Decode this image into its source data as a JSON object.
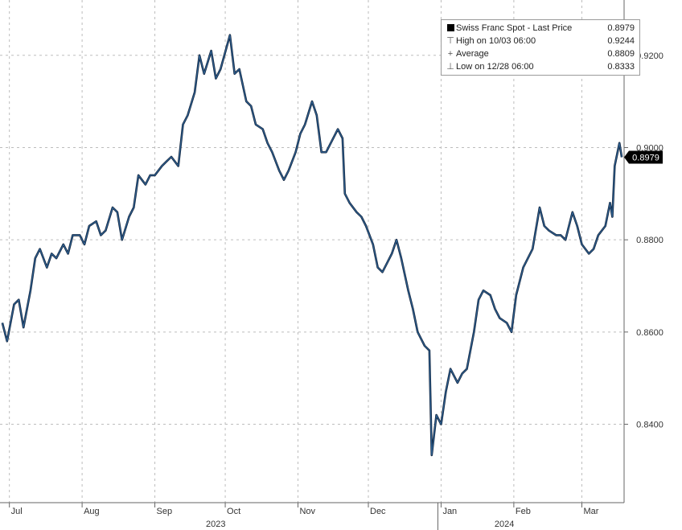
{
  "chart_data": {
    "type": "line",
    "title": "",
    "xlabel": "",
    "ylabel": "",
    "ylim": [
      0.823,
      0.932
    ],
    "y_axis_position": "right",
    "grid": true,
    "legend_position": "top-right",
    "series": [
      {
        "name": "Swiss Franc Spot - Last Price",
        "color": "#2e5f8f",
        "points": [
          [
            "2023-06-28",
            0.862
          ],
          [
            "2023-06-30",
            0.858
          ],
          [
            "2023-07-03",
            0.866
          ],
          [
            "2023-07-05",
            0.867
          ],
          [
            "2023-07-07",
            0.861
          ],
          [
            "2023-07-10",
            0.869
          ],
          [
            "2023-07-12",
            0.876
          ],
          [
            "2023-07-14",
            0.878
          ],
          [
            "2023-07-17",
            0.874
          ],
          [
            "2023-07-19",
            0.877
          ],
          [
            "2023-07-21",
            0.876
          ],
          [
            "2023-07-24",
            0.879
          ],
          [
            "2023-07-26",
            0.877
          ],
          [
            "2023-07-28",
            0.881
          ],
          [
            "2023-07-31",
            0.881
          ],
          [
            "2023-08-02",
            0.879
          ],
          [
            "2023-08-04",
            0.883
          ],
          [
            "2023-08-07",
            0.884
          ],
          [
            "2023-08-09",
            0.881
          ],
          [
            "2023-08-11",
            0.882
          ],
          [
            "2023-08-14",
            0.887
          ],
          [
            "2023-08-16",
            0.886
          ],
          [
            "2023-08-18",
            0.88
          ],
          [
            "2023-08-21",
            0.885
          ],
          [
            "2023-08-23",
            0.887
          ],
          [
            "2023-08-25",
            0.894
          ],
          [
            "2023-08-28",
            0.892
          ],
          [
            "2023-08-30",
            0.894
          ],
          [
            "2023-09-01",
            0.894
          ],
          [
            "2023-09-04",
            0.896
          ],
          [
            "2023-09-06",
            0.897
          ],
          [
            "2023-09-08",
            0.898
          ],
          [
            "2023-09-11",
            0.896
          ],
          [
            "2023-09-13",
            0.905
          ],
          [
            "2023-09-15",
            0.907
          ],
          [
            "2023-09-18",
            0.912
          ],
          [
            "2023-09-20",
            0.92
          ],
          [
            "2023-09-22",
            0.916
          ],
          [
            "2023-09-25",
            0.921
          ],
          [
            "2023-09-27",
            0.915
          ],
          [
            "2023-09-29",
            0.917
          ],
          [
            "2023-10-03",
            0.9244
          ],
          [
            "2023-10-05",
            0.916
          ],
          [
            "2023-10-07",
            0.917
          ],
          [
            "2023-10-10",
            0.91
          ],
          [
            "2023-10-12",
            0.909
          ],
          [
            "2023-10-14",
            0.905
          ],
          [
            "2023-10-17",
            0.904
          ],
          [
            "2023-10-19",
            0.901
          ],
          [
            "2023-10-21",
            0.899
          ],
          [
            "2023-10-24",
            0.895
          ],
          [
            "2023-10-26",
            0.893
          ],
          [
            "2023-10-28",
            0.895
          ],
          [
            "2023-10-31",
            0.899
          ],
          [
            "2023-11-02",
            0.903
          ],
          [
            "2023-11-04",
            0.905
          ],
          [
            "2023-11-07",
            0.91
          ],
          [
            "2023-11-09",
            0.907
          ],
          [
            "2023-11-11",
            0.899
          ],
          [
            "2023-11-13",
            0.899
          ],
          [
            "2023-11-15",
            0.901
          ],
          [
            "2023-11-18",
            0.904
          ],
          [
            "2023-11-20",
            0.902
          ],
          [
            "2023-11-21",
            0.89
          ],
          [
            "2023-11-23",
            0.888
          ],
          [
            "2023-11-26",
            0.886
          ],
          [
            "2023-11-28",
            0.885
          ],
          [
            "2023-11-30",
            0.883
          ],
          [
            "2023-12-03",
            0.879
          ],
          [
            "2023-12-05",
            0.874
          ],
          [
            "2023-12-07",
            0.873
          ],
          [
            "2023-12-09",
            0.875
          ],
          [
            "2023-12-11",
            0.877
          ],
          [
            "2023-12-13",
            0.88
          ],
          [
            "2023-12-15",
            0.876
          ],
          [
            "2023-12-18",
            0.869
          ],
          [
            "2023-12-20",
            0.865
          ],
          [
            "2023-12-22",
            0.86
          ],
          [
            "2023-12-25",
            0.857
          ],
          [
            "2023-12-27",
            0.856
          ],
          [
            "2023-12-28",
            0.8333
          ],
          [
            "2023-12-30",
            0.842
          ],
          [
            "2024-01-01",
            0.84
          ],
          [
            "2024-01-03",
            0.847
          ],
          [
            "2024-01-05",
            0.852
          ],
          [
            "2024-01-08",
            0.849
          ],
          [
            "2024-01-10",
            0.851
          ],
          [
            "2024-01-12",
            0.852
          ],
          [
            "2024-01-15",
            0.86
          ],
          [
            "2024-01-17",
            0.867
          ],
          [
            "2024-01-19",
            0.869
          ],
          [
            "2024-01-22",
            0.868
          ],
          [
            "2024-01-24",
            0.865
          ],
          [
            "2024-01-26",
            0.863
          ],
          [
            "2024-01-29",
            0.862
          ],
          [
            "2024-01-31",
            0.86
          ],
          [
            "2024-02-02",
            0.868
          ],
          [
            "2024-02-05",
            0.874
          ],
          [
            "2024-02-07",
            0.876
          ],
          [
            "2024-02-09",
            0.878
          ],
          [
            "2024-02-12",
            0.887
          ],
          [
            "2024-02-14",
            0.883
          ],
          [
            "2024-02-16",
            0.882
          ],
          [
            "2024-02-19",
            0.881
          ],
          [
            "2024-02-21",
            0.881
          ],
          [
            "2024-02-23",
            0.88
          ],
          [
            "2024-02-26",
            0.886
          ],
          [
            "2024-02-28",
            0.883
          ],
          [
            "2024-03-01",
            0.879
          ],
          [
            "2024-03-04",
            0.877
          ],
          [
            "2024-03-06",
            0.878
          ],
          [
            "2024-03-08",
            0.881
          ],
          [
            "2024-03-11",
            0.883
          ],
          [
            "2024-03-13",
            0.888
          ],
          [
            "2024-03-14",
            0.885
          ],
          [
            "2024-03-15",
            0.896
          ],
          [
            "2024-03-17",
            0.901
          ],
          [
            "2024-03-18",
            0.8979
          ]
        ]
      }
    ],
    "x_axis": {
      "range": [
        "2023-06-27",
        "2024-03-19"
      ],
      "month_ticks": [
        {
          "label": "Jul",
          "date": "2023-07-01"
        },
        {
          "label": "Aug",
          "date": "2023-08-01"
        },
        {
          "label": "Sep",
          "date": "2023-09-01"
        },
        {
          "label": "Oct",
          "date": "2023-10-01"
        },
        {
          "label": "Nov",
          "date": "2023-11-01"
        },
        {
          "label": "Dec",
          "date": "2023-12-01"
        },
        {
          "label": "Jan",
          "date": "2024-01-01"
        },
        {
          "label": "Feb",
          "date": "2024-02-01"
        },
        {
          "label": "Mar",
          "date": "2024-03-01"
        }
      ],
      "year_labels": [
        {
          "label": "2023",
          "date": "2023-10-01"
        },
        {
          "label": "2024",
          "date": "2024-02-01"
        }
      ],
      "year_divider_date": "2024-01-01"
    },
    "y_axis": {
      "ticks": [
        {
          "label": "0.8400",
          "value": 0.84
        },
        {
          "label": "0.8600",
          "value": 0.86
        },
        {
          "label": "0.8800",
          "value": 0.88
        },
        {
          "label": "0.9000",
          "value": 0.9
        },
        {
          "label": "0.9200",
          "value": 0.92
        }
      ]
    },
    "last_price_tag": {
      "label": "0.8979",
      "value": 0.8979
    }
  },
  "legend": {
    "title": "Swiss Franc Spot - Last Price",
    "title_value": "0.8979",
    "high_label": "High on 10/03 06:00",
    "high_value": "0.9244",
    "average_label": "Average",
    "average_value": "0.8809",
    "low_label": "Low on 12/28 06:00",
    "low_value": "0.8333"
  }
}
